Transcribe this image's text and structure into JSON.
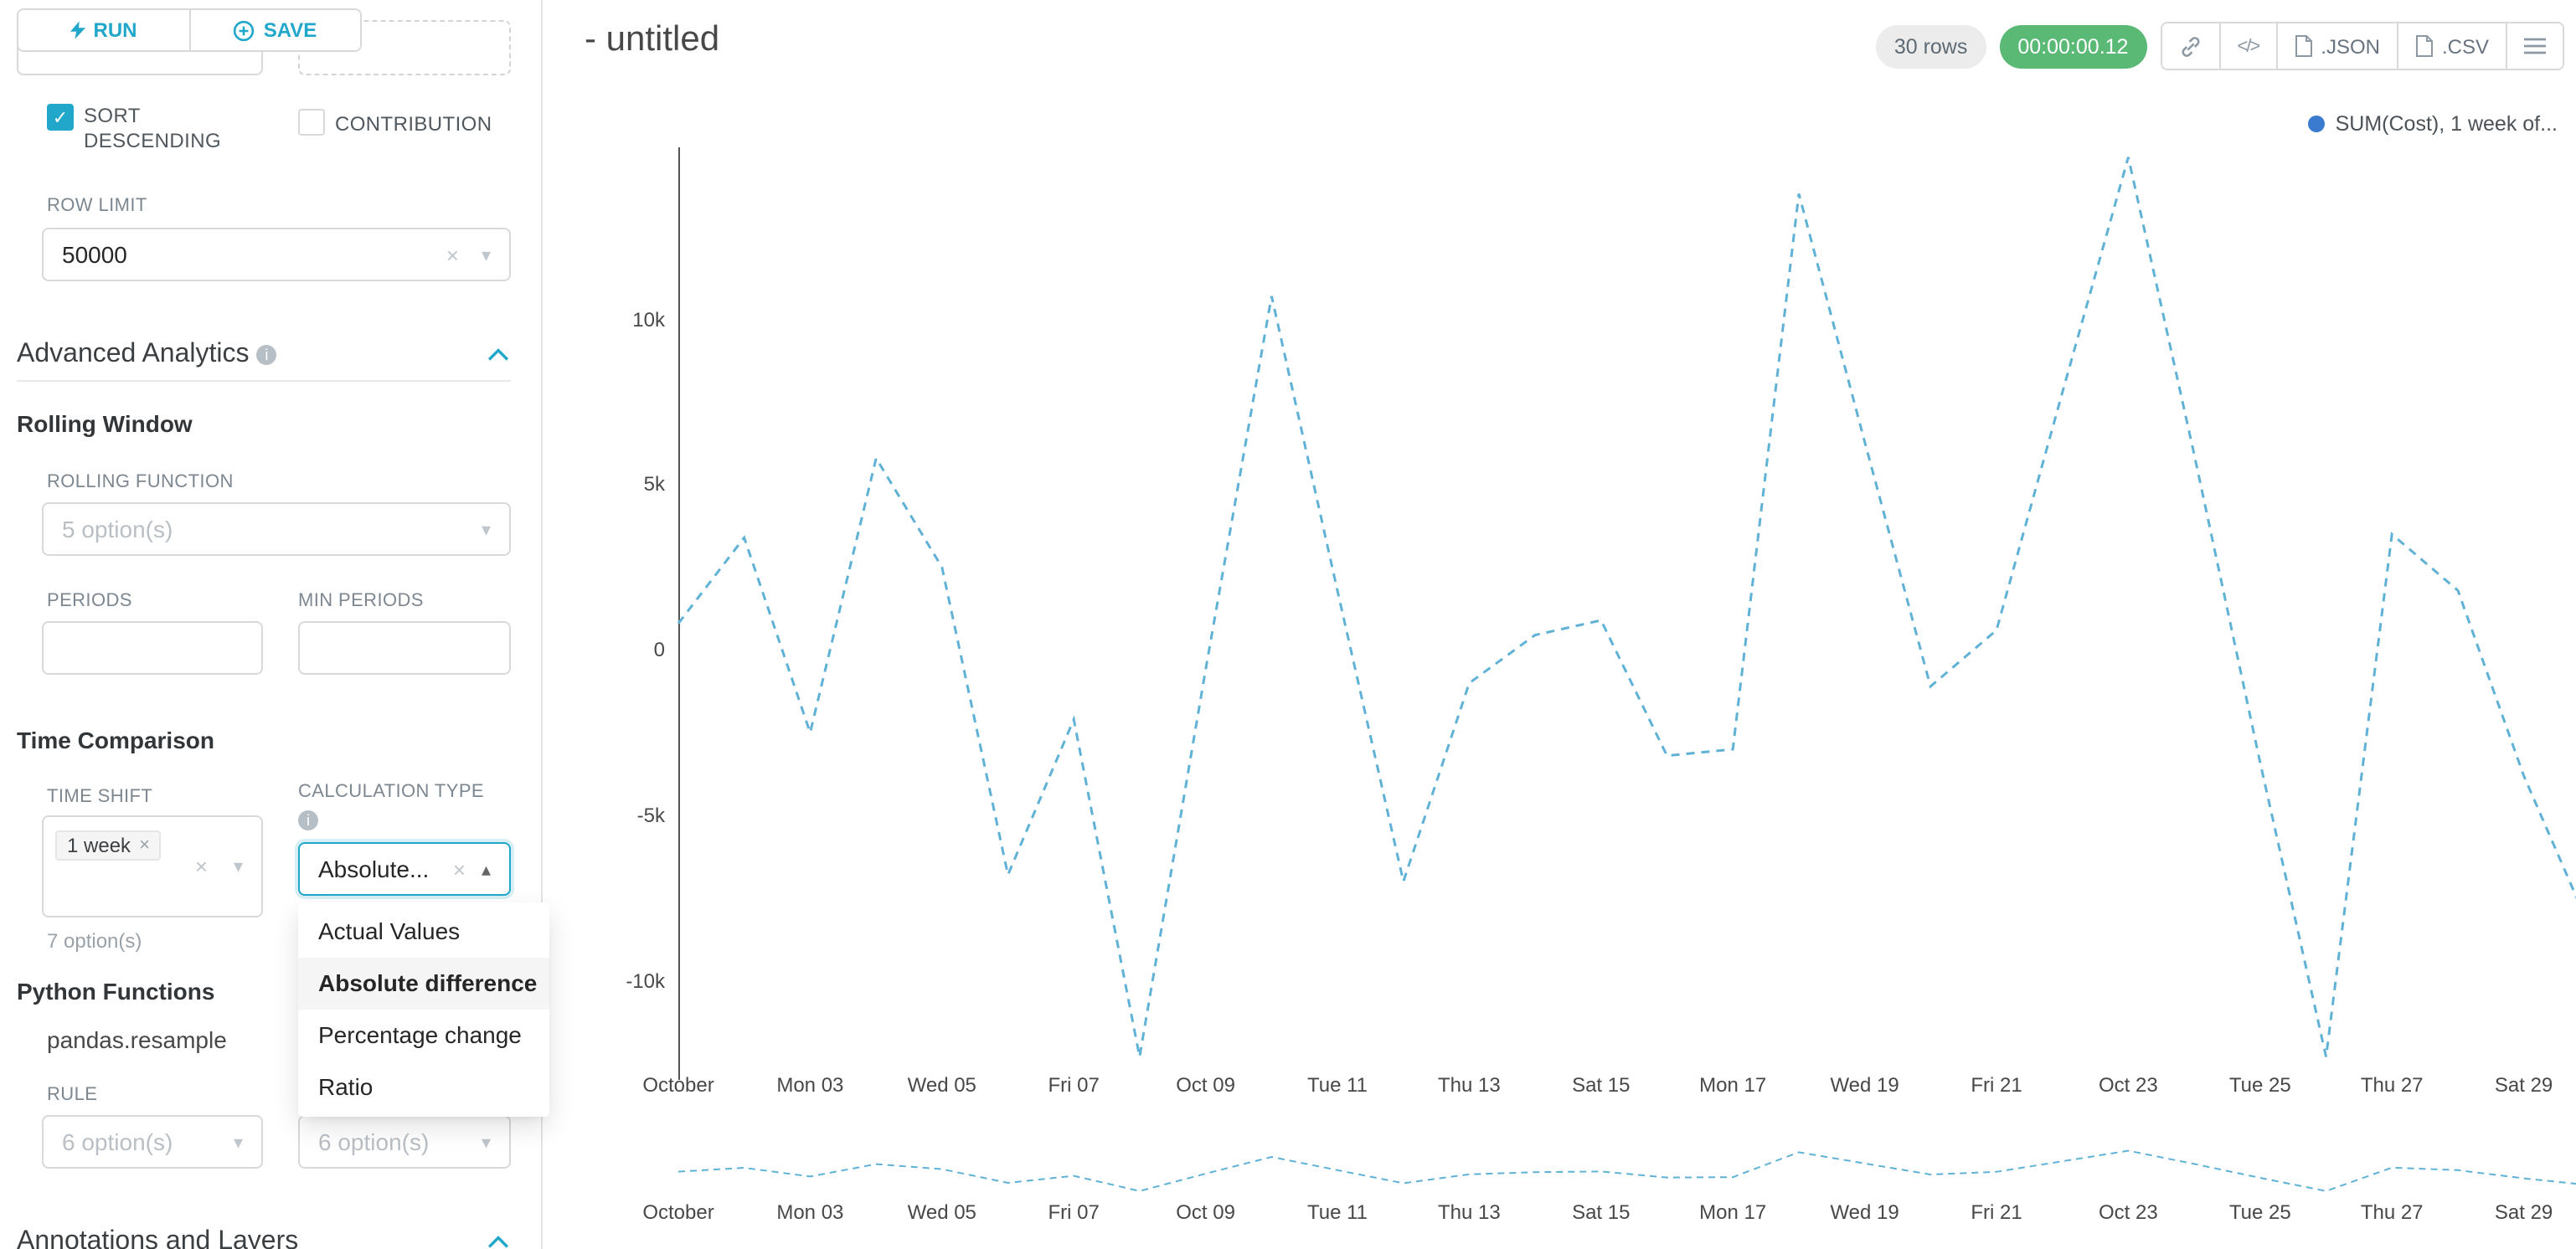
{
  "colors": {
    "accent": "#20a7c9",
    "line": "#5fb2d6",
    "legend_dot": "#3a7bd0",
    "timer_badge_bg": "#5ab974"
  },
  "toolbar": {
    "run_label": "RUN",
    "save_label": "SAVE"
  },
  "sidebar": {
    "sort_descending_label": "SORT DESCENDING",
    "contribution_label": "CONTRIBUTION",
    "row_limit": {
      "label": "ROW LIMIT",
      "value": "50000"
    },
    "advanced_analytics_title": "Advanced Analytics",
    "rolling_window": {
      "title": "Rolling Window",
      "function_label": "ROLLING FUNCTION",
      "function_placeholder": "5 option(s)",
      "periods_label": "PERIODS",
      "min_periods_label": "MIN PERIODS"
    },
    "time_comparison": {
      "title": "Time Comparison",
      "time_shift_label": "TIME SHIFT",
      "time_shift_tag": "1 week",
      "time_shift_helper": "7 option(s)",
      "calculation_type_label": "CALCULATION TYPE",
      "calculation_value": "Absolute...",
      "options": [
        "Actual Values",
        "Absolute difference",
        "Percentage change",
        "Ratio"
      ],
      "selected": "Absolute difference"
    },
    "python_functions": {
      "title": "Python Functions",
      "resample": "pandas.resample",
      "rule_label": "RULE",
      "rule_placeholder1": "6 option(s)",
      "rule_placeholder2": "6 option(s)"
    },
    "annotations_title": "Annotations and Layers"
  },
  "header": {
    "title": "- untitled",
    "rows_badge": "30 rows",
    "timer_badge": "00:00:00.12",
    "json_label": ".JSON",
    "csv_label": ".CSV"
  },
  "chart_data": {
    "type": "line",
    "line_style": "dashed",
    "legend": "SUM(Cost), 1 week of...",
    "x": [
      "Oct 01",
      "Oct 02",
      "Oct 03",
      "Oct 04",
      "Oct 05",
      "Oct 06",
      "Oct 07",
      "Oct 08",
      "Oct 09",
      "Oct 10",
      "Oct 11",
      "Oct 12",
      "Oct 13",
      "Oct 14",
      "Oct 15",
      "Oct 16",
      "Oct 17",
      "Oct 18",
      "Oct 19",
      "Oct 20",
      "Oct 21",
      "Oct 22",
      "Oct 23",
      "Oct 24",
      "Oct 25",
      "Oct 26",
      "Oct 27",
      "Oct 28",
      "Oct 29",
      "Oct 30"
    ],
    "values": [
      800,
      3400,
      -2500,
      5800,
      2500,
      -6800,
      -2100,
      -12300,
      -600,
      10700,
      1800,
      -7000,
      -1000,
      450,
      900,
      -3200,
      -3000,
      13800,
      6300,
      -1100,
      600,
      7800,
      14900,
      5900,
      -3400,
      -12300,
      3500,
      1800,
      -3800,
      -8400
    ],
    "x_tick_labels": [
      "October",
      "Mon 03",
      "Wed 05",
      "Fri 07",
      "Oct 09",
      "Tue 11",
      "Thu 13",
      "Sat 15",
      "Mon 17",
      "Wed 19",
      "Fri 21",
      "Oct 23",
      "Tue 25",
      "Thu 27",
      "Sat 29"
    ],
    "y_ticks": [
      10000,
      5000,
      0,
      -5000,
      -10000
    ],
    "y_tick_labels": [
      "10k",
      "5k",
      "0",
      "-5k",
      "-10k"
    ],
    "ylim": [
      -13000,
      15200
    ],
    "title": "",
    "xlabel": "",
    "ylabel": ""
  }
}
